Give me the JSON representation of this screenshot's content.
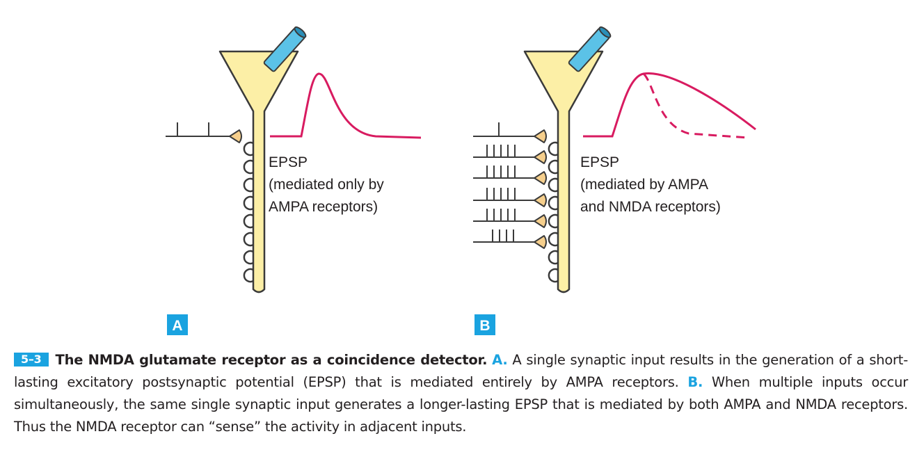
{
  "colors": {
    "neuron_fill": "#fcefa6",
    "neuron_stroke": "#3a3a3a",
    "terminal_fill": "#f6cf8c",
    "epsp_trace": "#d81b60",
    "electrode": "#5bc2e7",
    "accent": "#1aa3e0"
  },
  "panel_a": {
    "letter": "A",
    "label_lines": [
      "EPSP",
      "(mediated only by",
      "AMPA receptors)"
    ]
  },
  "panel_b": {
    "letter": "B",
    "label_lines": [
      "EPSP",
      "(mediated by AMPA",
      "and NMDA receptors)"
    ]
  },
  "caption": {
    "number": "5–3",
    "title": "The NMDA glutamate receptor as a coincidence detector.",
    "panel_a_ref": "A.",
    "text_a": "A single synaptic input results in the generation of a short-lasting excitatory postsynaptic potential (EPSP) that is mediated entirely by AMPA receptors.",
    "panel_b_ref": "B.",
    "text_b": "When multiple inputs occur simultaneously, the same single synaptic input generates a longer-lasting EPSP that is mediated by both AMPA and NMDA receptors. Thus the NMDA receptor can “sense” the activity in adjacent inputs."
  }
}
